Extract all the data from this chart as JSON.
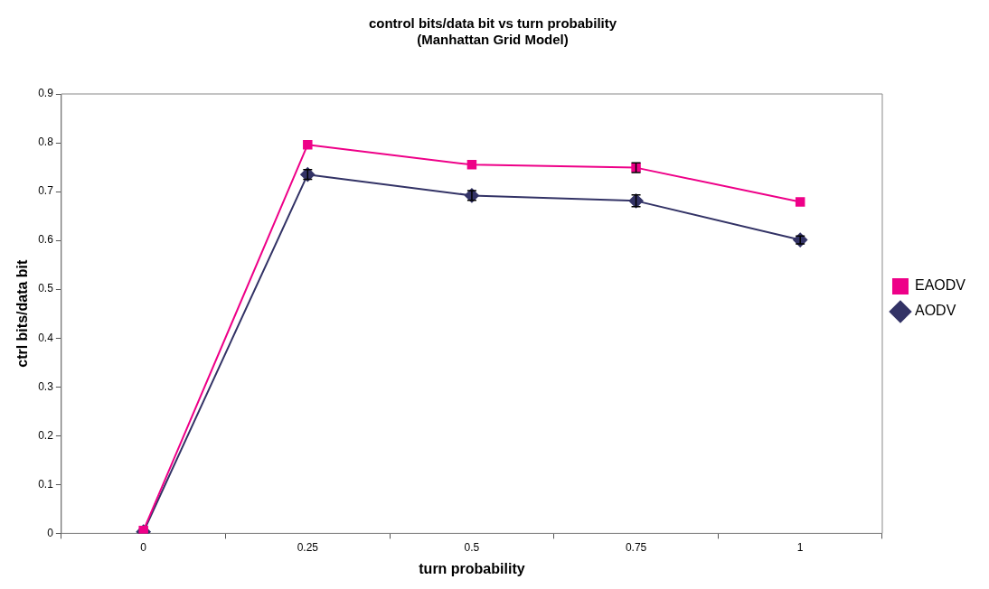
{
  "chart_data": {
    "type": "line",
    "title": "control bits/data bit vs turn probability\n(Manhattan Grid Model)",
    "xlabel": "turn probability",
    "ylabel": "ctrl bits/data bit",
    "categories": [
      "0",
      "0.25",
      "0.5",
      "0.75",
      "1"
    ],
    "series": [
      {
        "name": "AODV",
        "color": "#333366",
        "marker": "diamond",
        "values": [
          0.003,
          0.735,
          0.692,
          0.681,
          0.601
        ],
        "errors": [
          null,
          0.01,
          0.01,
          0.012,
          0.008
        ]
      },
      {
        "name": "EAODV",
        "color": "#ee0088",
        "marker": "square",
        "values": [
          0.006,
          0.796,
          0.755,
          0.749,
          0.679
        ],
        "errors": [
          null,
          null,
          null,
          0.01,
          null
        ]
      }
    ],
    "ylim": [
      0,
      0.9
    ],
    "yticks": [
      0,
      0.1,
      0.2,
      0.3,
      0.4,
      0.5,
      0.6,
      0.7,
      0.8,
      0.9
    ],
    "grid": false,
    "legend": "right"
  }
}
